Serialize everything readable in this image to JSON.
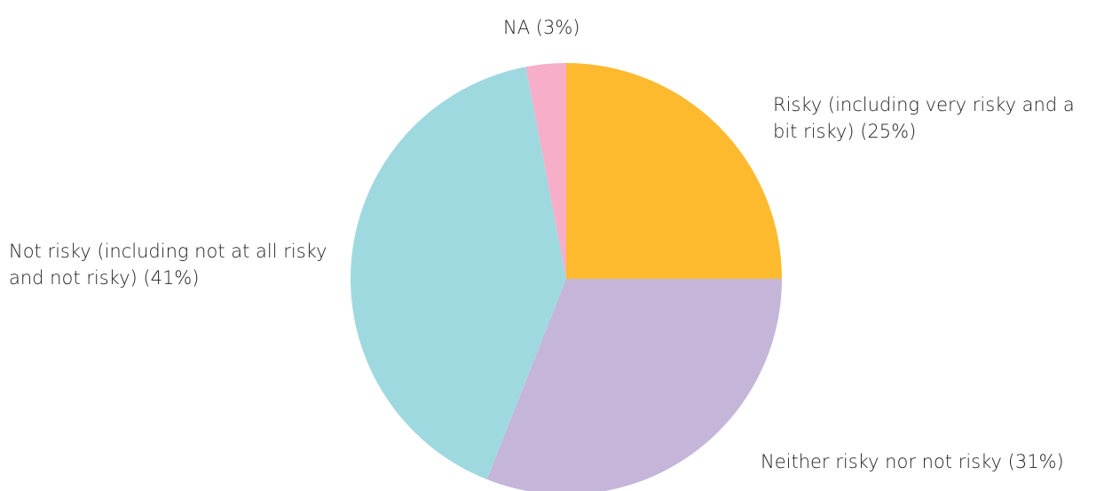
{
  "chart_data": {
    "type": "pie",
    "categories": [
      "Risky (including very risky and a bit risky)",
      "Neither risky nor not risky",
      "Not risky (including not at all risky and not risky)",
      "NA"
    ],
    "values": [
      25,
      31,
      41,
      3
    ],
    "value_labels": [
      "(25%)",
      "(31%)",
      "(41%)",
      "(3%)"
    ],
    "colors": [
      "#fdba2f",
      "#c5b6d9",
      "#9fd9e0",
      "#f7aec8"
    ]
  }
}
